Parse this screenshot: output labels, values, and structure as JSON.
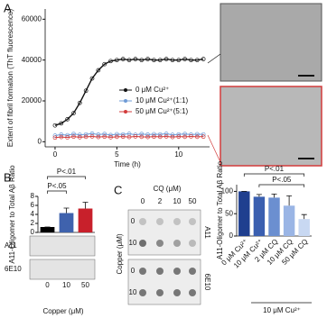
{
  "panels": [
    "A",
    "B",
    "C"
  ],
  "chart_data": [
    {
      "type": "scatter",
      "ylabel": "Extent of fibril formation (ThT fluorescence)",
      "xlabel": "Time (h)",
      "x": [
        0,
        0.5,
        1,
        1.5,
        2,
        2.5,
        3,
        3.5,
        4,
        4.5,
        5,
        5.5,
        6,
        6.5,
        7,
        7.5,
        8,
        8.5,
        9,
        9.5,
        10,
        10.5,
        11,
        11.5,
        12
      ],
      "series": [
        {
          "name": "0 μM Cu²⁺",
          "color": "#111111",
          "values": [
            8000,
            9000,
            11000,
            14000,
            19000,
            25000,
            31000,
            35000,
            38000,
            39500,
            40000,
            40500,
            40000,
            40500,
            40000,
            40500,
            40000,
            40000,
            40500,
            40000,
            40000,
            40500,
            40000,
            40000,
            40500
          ]
        },
        {
          "name": "10 μM Cu²⁺(1:1)",
          "color": "#6f9bd6",
          "values": [
            3000,
            3500,
            3200,
            3800,
            3400,
            3600,
            4000,
            3500,
            3800,
            3300,
            3700,
            3600,
            3900,
            3400,
            3800,
            3500,
            3700,
            3600,
            3900,
            3400,
            3600,
            3800,
            3500,
            3700,
            3600
          ]
        },
        {
          "name": "50 μM Cu²⁺(5:1)",
          "color": "#d23b3b",
          "values": [
            2000,
            2300,
            2100,
            2500,
            2200,
            2400,
            2600,
            2300,
            2500,
            2200,
            2400,
            2500,
            2300,
            2600,
            2400,
            2300,
            2500,
            2400,
            2600,
            2300,
            2500,
            2400,
            2600,
            2400,
            2500
          ]
        }
      ],
      "xlim": [
        -0.8,
        12.5
      ],
      "ylim": [
        -2500,
        65000
      ],
      "xticks": [
        0,
        5,
        10
      ],
      "yticks": [
        0,
        20000,
        40000,
        60000
      ]
    },
    {
      "type": "bar",
      "ylabel": "A11-Oligomer to Total Aβ Ratio",
      "xlabel": "Copper (μM)",
      "categories": [
        "0",
        "10",
        "50"
      ],
      "values": [
        1.2,
        4.3,
        5.3
      ],
      "errors": [
        0,
        1.1,
        1.4
      ],
      "colors": [
        "#000000",
        "#3f62ad",
        "#c8202b"
      ],
      "ylim": [
        0,
        8
      ],
      "yticks": [
        0,
        2,
        4,
        6,
        8
      ],
      "annotations": [
        "P<.01",
        "P<.05"
      ],
      "blot_rows": [
        "A11",
        "6E10"
      ]
    },
    {
      "type": "bar",
      "ylabel": "A11-Oligomer to Total Aβ Ratio",
      "group_label": "10 μM Cu²⁺",
      "categories": [
        "0 μM Cu²⁺",
        "10 μM Cu²⁺",
        "2 μM CQ",
        "10 μM CQ",
        "50 μM CQ"
      ],
      "values": [
        100,
        88,
        86,
        68,
        38
      ],
      "errors": [
        0,
        5,
        8,
        22,
        10
      ],
      "colors": [
        "#1f3f8f",
        "#3a5fb0",
        "#6b8fd0",
        "#9ab5e5",
        "#c8d8f2"
      ],
      "ylim": [
        0,
        115
      ],
      "yticks": [
        0,
        50,
        100
      ],
      "annotations": [
        "P<.01",
        "P<.05"
      ]
    }
  ],
  "blot_c": {
    "title": "CQ (μM)",
    "columns": [
      "0",
      "2",
      "10",
      "50"
    ],
    "ylabel": "Copper (μM)",
    "rows": [
      "0",
      "10",
      "0",
      "10"
    ],
    "blocks": [
      "A11",
      "6E10"
    ]
  }
}
